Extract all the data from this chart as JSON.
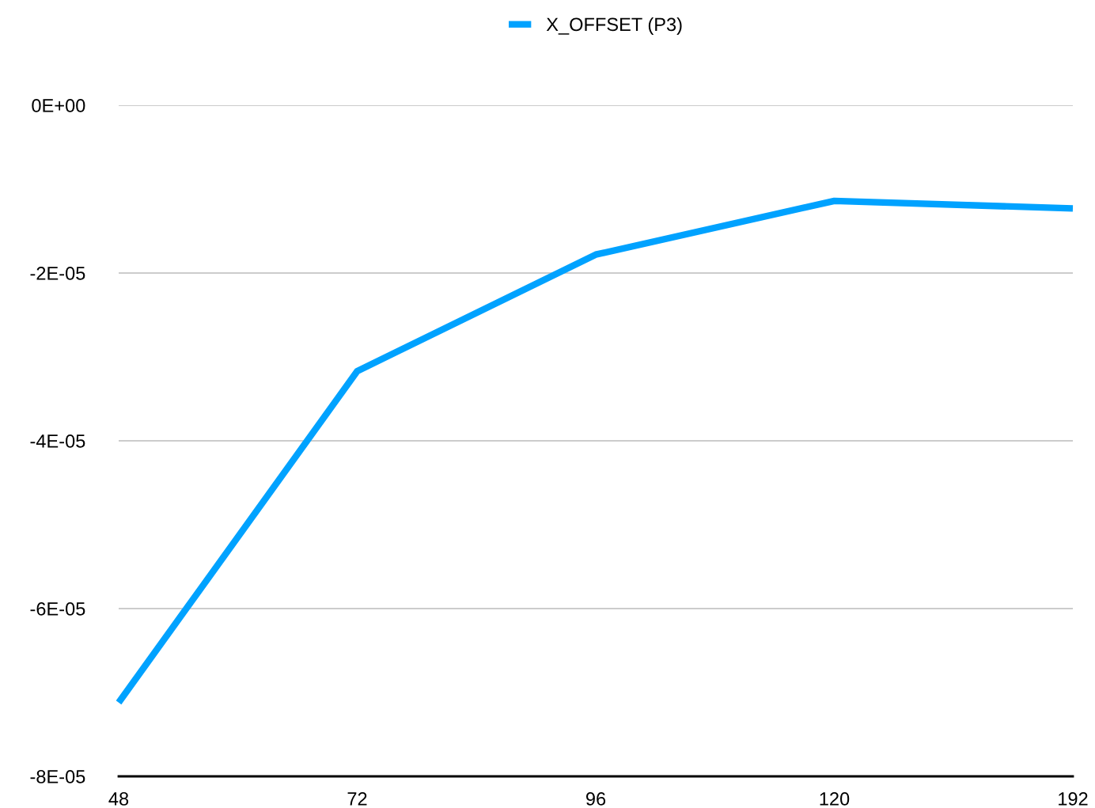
{
  "chart_data": {
    "type": "line",
    "categories": [
      "48",
      "72",
      "96",
      "120",
      "192"
    ],
    "series": [
      {
        "name": "X_OFFSET (P3)",
        "color": "#00a2ff",
        "values": [
          -7.12e-05,
          -3.17e-05,
          -1.78e-05,
          -1.14e-05,
          -1.23e-05
        ]
      }
    ],
    "ylim": [
      -8e-05,
      0
    ],
    "yticks": [
      {
        "value": -8e-05,
        "label": "-8E-05"
      },
      {
        "value": -6e-05,
        "label": "-6E-05"
      },
      {
        "value": -4e-05,
        "label": "-4E-05"
      },
      {
        "value": -2e-05,
        "label": "-2E-05"
      },
      {
        "value": 0,
        "label": "0E+00"
      }
    ],
    "grid": "y",
    "legend": "top",
    "marker": "none",
    "line_style": "solid"
  }
}
